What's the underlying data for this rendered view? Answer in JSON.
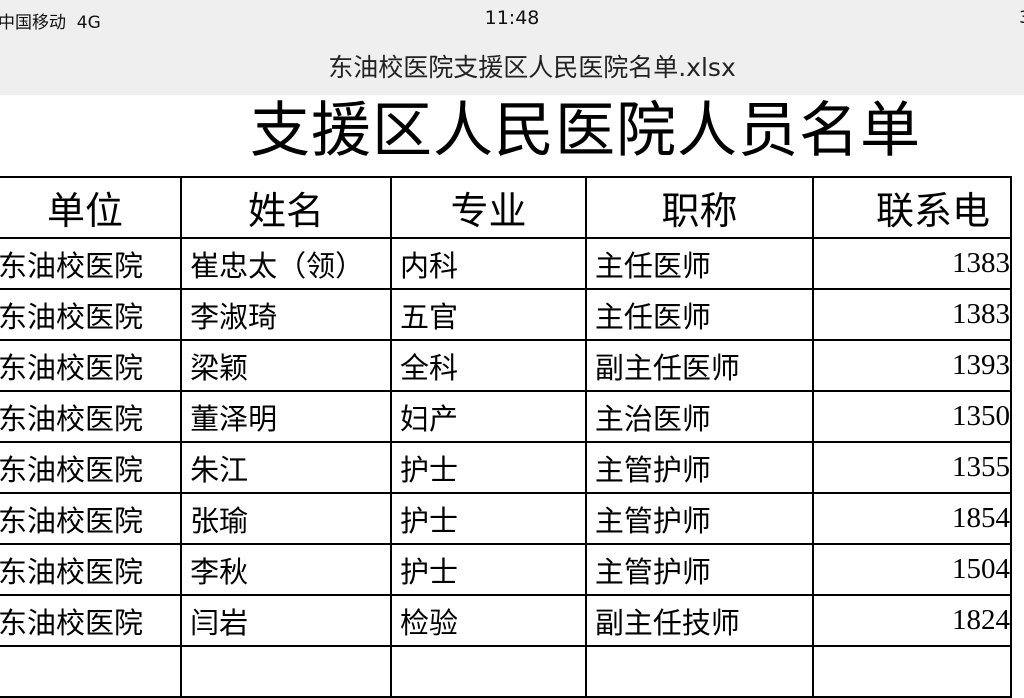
{
  "status_bar": {
    "carrier": "中国移动  4G",
    "time": "11:48",
    "battery": "3"
  },
  "file_name": "东油校医院支援区人民医院名单.xlsx",
  "sheet": {
    "title": "支援区人民医院人员名单",
    "headers": [
      "单位",
      "姓名",
      "专业",
      "职称",
      "联系电"
    ],
    "rows": [
      [
        "东油校医院",
        "崔忠太（领）",
        "内科",
        "主任医师",
        "1383"
      ],
      [
        "东油校医院",
        "李淑琦",
        "五官",
        "主任医师",
        "1383"
      ],
      [
        "东油校医院",
        "梁颖",
        "全科",
        "副主任医师",
        "1393"
      ],
      [
        "东油校医院",
        "董泽明",
        "妇产",
        "主治医师",
        "1350"
      ],
      [
        "东油校医院",
        "朱江",
        "护士",
        "主管护师",
        "1355"
      ],
      [
        "东油校医院",
        "张瑜",
        "护士",
        "主管护师",
        "1854"
      ],
      [
        "东油校医院",
        "李秋",
        "护士",
        "主管护师",
        "1504"
      ],
      [
        "东油校医院",
        "闫岩",
        "检验",
        "副主任技师",
        "1824"
      ],
      [
        "",
        "",
        "",
        "",
        ""
      ]
    ]
  }
}
